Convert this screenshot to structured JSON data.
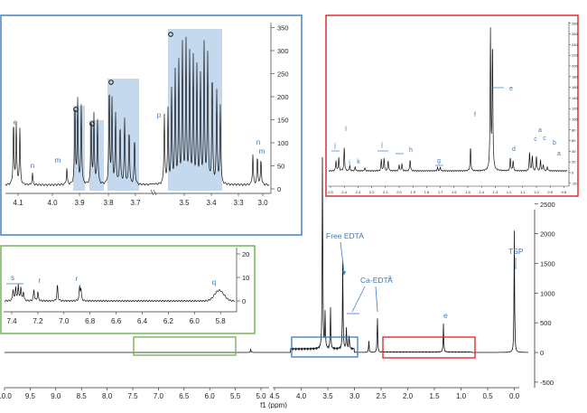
{
  "chart_data": {
    "type": "line",
    "main": {
      "xlabel": "f1 (ppm)",
      "x_ticks_left": [
        "10.0",
        "9.5",
        "9.0",
        "8.5",
        "8.0",
        "7.5",
        "7.0",
        "6.5",
        "6.0",
        "5.5",
        "5.0"
      ],
      "x_ticks_right": [
        "4.5",
        "4.0",
        "3.5",
        "3.0",
        "2.5",
        "2.0",
        "1.5",
        "1.0",
        "0.5",
        "0.0"
      ],
      "y_ticks": [
        "3000",
        "2500",
        "2000",
        "1500",
        "1000",
        "500",
        "0",
        "-500"
      ],
      "annotations": [
        "Free EDTA",
        "Ca-EDTA",
        "2-",
        "TSP",
        "e"
      ],
      "peaks": [
        {
          "ppm": 5.2,
          "y": 60
        },
        {
          "ppm": 3.6,
          "y": 3500
        },
        {
          "ppm": 3.55,
          "y": 600
        },
        {
          "ppm": 3.45,
          "y": 700
        },
        {
          "ppm": 3.22,
          "y": 1500
        },
        {
          "ppm": 3.15,
          "y": 400
        },
        {
          "ppm": 3.1,
          "y": 250
        },
        {
          "ppm": 2.73,
          "y": 200
        },
        {
          "ppm": 2.57,
          "y": 650
        },
        {
          "ppm": 1.33,
          "y": 480
        },
        {
          "ppm": 0.0,
          "y": 2050
        }
      ]
    },
    "insets": [
      {
        "name": "blue",
        "color": "#3b78c2",
        "x_ticks": [
          "4.1",
          "4.0",
          "3.9",
          "3.8",
          "3.7",
          "3.5",
          "3.4",
          "3.3",
          "3.0"
        ],
        "y_ticks": [
          "350",
          "300",
          "250",
          "200",
          "150",
          "100",
          "50",
          "0"
        ],
        "labels": [
          "e",
          "n",
          "m",
          "p",
          "n",
          "m"
        ]
      },
      {
        "name": "red",
        "color": "#e02020",
        "x_ticks": [
          "2.5",
          "2.4",
          "2.3",
          "2.2",
          "2.1",
          "2.0",
          "1.9",
          "1.8",
          "1.7",
          "1.6",
          "1.5",
          "1.4",
          "1.3",
          "1.2",
          "1.1",
          "1.0",
          "0.9",
          "0.8"
        ],
        "y_ticks": [
          "280",
          "260",
          "240",
          "220",
          "200",
          "180",
          "160",
          "140",
          "120",
          "100",
          "80",
          "60",
          "40",
          "20",
          "0",
          "-20"
        ],
        "labels": [
          "j",
          "l",
          "j",
          "i",
          "k",
          "h",
          "g",
          "f",
          "e",
          "d",
          "c",
          "a",
          "c",
          "b",
          "a"
        ]
      },
      {
        "name": "green",
        "color": "#6ab04c",
        "x_ticks": [
          "7.4",
          "7.2",
          "7.0",
          "6.8",
          "6.6",
          "6.4",
          "6.2",
          "6.0",
          "5.8"
        ],
        "y_ticks": [
          "20",
          "10",
          "0"
        ],
        "labels": [
          "s",
          "r",
          "r",
          "q"
        ]
      }
    ]
  }
}
